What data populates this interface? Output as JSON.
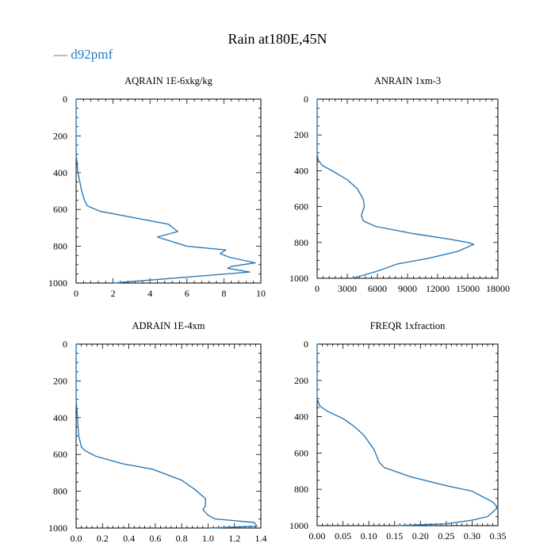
{
  "page": {
    "title": "Rain at180E,45N",
    "legend": [
      {
        "label": "— d92pmf",
        "color": "#2a7ab9"
      }
    ]
  },
  "chart_data": [
    {
      "type": "line",
      "title": "AQRAIN  1E-6xkg/kg",
      "xlim": [
        0,
        10
      ],
      "ylim": [
        1000,
        0
      ],
      "xticks": [
        0,
        2,
        4,
        6,
        8,
        10
      ],
      "xtick_labels": [
        "0",
        "2",
        "4",
        "6",
        "8",
        "10"
      ],
      "yticks": [
        0,
        200,
        400,
        600,
        800,
        1000
      ],
      "ytick_labels": [
        "0",
        "200",
        "400",
        "600",
        "800",
        "1000"
      ],
      "series": [
        {
          "name": "d92pmf",
          "color": "#2a7ab9",
          "points": [
            [
              0,
              0
            ],
            [
              0,
              100
            ],
            [
              0,
              200
            ],
            [
              0,
              300
            ],
            [
              0.05,
              350
            ],
            [
              0.1,
              400
            ],
            [
              0.2,
              450
            ],
            [
              0.3,
              500
            ],
            [
              0.45,
              550
            ],
            [
              0.6,
              580
            ],
            [
              1.3,
              610
            ],
            [
              5,
              680
            ],
            [
              5.5,
              720
            ],
            [
              4.4,
              750
            ],
            [
              6,
              800
            ],
            [
              8.1,
              820
            ],
            [
              7.8,
              840
            ],
            [
              8.3,
              860
            ],
            [
              9.7,
              890
            ],
            [
              8.4,
              910
            ],
            [
              8.2,
              920
            ],
            [
              9.4,
              940
            ],
            [
              2,
              1000
            ]
          ]
        }
      ]
    },
    {
      "type": "line",
      "title": "ANRAIN  1xm-3",
      "xlim": [
        0,
        18000
      ],
      "ylim": [
        1000,
        0
      ],
      "xticks": [
        0,
        3000,
        6000,
        9000,
        12000,
        15000,
        18000
      ],
      "xtick_labels": [
        "0",
        "3000",
        "6000",
        "9000",
        "12000",
        "15000",
        "18000"
      ],
      "yticks": [
        0,
        200,
        400,
        600,
        800,
        1000
      ],
      "ytick_labels": [
        "0",
        "200",
        "400",
        "600",
        "800",
        "1000"
      ],
      "series": [
        {
          "name": "d92pmf",
          "color": "#2a7ab9",
          "points": [
            [
              0,
              0
            ],
            [
              0,
              100
            ],
            [
              0,
              200
            ],
            [
              0,
              300
            ],
            [
              100,
              340
            ],
            [
              500,
              370
            ],
            [
              1500,
              400
            ],
            [
              3000,
              450
            ],
            [
              4000,
              500
            ],
            [
              4600,
              560
            ],
            [
              4700,
              600
            ],
            [
              4400,
              650
            ],
            [
              4600,
              680
            ],
            [
              5800,
              710
            ],
            [
              9500,
              750
            ],
            [
              13000,
              780
            ],
            [
              15000,
              800
            ],
            [
              15600,
              810
            ],
            [
              14000,
              850
            ],
            [
              11000,
              890
            ],
            [
              8000,
              920
            ],
            [
              6000,
              960
            ],
            [
              3500,
              1000
            ]
          ]
        }
      ]
    },
    {
      "type": "line",
      "title": "ADRAIN  1E-4xm",
      "xlim": [
        0,
        1.4
      ],
      "ylim": [
        1000,
        0
      ],
      "xticks": [
        0,
        0.2,
        0.4,
        0.6,
        0.8,
        1.0,
        1.2,
        1.4
      ],
      "xtick_labels": [
        "0.0",
        "0.2",
        "0.4",
        "0.6",
        "0.8",
        "1.0",
        "1.2",
        "1.4"
      ],
      "yticks": [
        0,
        200,
        400,
        600,
        800,
        1000
      ],
      "ytick_labels": [
        "0",
        "200",
        "400",
        "600",
        "800",
        "1000"
      ],
      "series": [
        {
          "name": "d92pmf",
          "color": "#2a7ab9",
          "points": [
            [
              0,
              0
            ],
            [
              0,
              100
            ],
            [
              0,
              200
            ],
            [
              0,
              300
            ],
            [
              0.01,
              400
            ],
            [
              0.02,
              500
            ],
            [
              0.04,
              560
            ],
            [
              0.07,
              580
            ],
            [
              0.15,
              610
            ],
            [
              0.35,
              650
            ],
            [
              0.58,
              680
            ],
            [
              0.8,
              740
            ],
            [
              0.9,
              790
            ],
            [
              0.98,
              840
            ],
            [
              0.98,
              880
            ],
            [
              0.96,
              900
            ],
            [
              1.0,
              930
            ],
            [
              1.05,
              950
            ],
            [
              1.2,
              960
            ],
            [
              1.35,
              970
            ],
            [
              1.37,
              990
            ],
            [
              1.0,
              1000
            ]
          ]
        }
      ]
    },
    {
      "type": "line",
      "title": "FREQR  1xfraction",
      "xlim": [
        0,
        0.35
      ],
      "ylim": [
        1000,
        0
      ],
      "xticks": [
        0,
        0.05,
        0.1,
        0.15,
        0.2,
        0.25,
        0.3,
        0.35
      ],
      "xtick_labels": [
        "0.00",
        "0.05",
        "0.10",
        "0.15",
        "0.20",
        "0.25",
        "0.30",
        "0.35"
      ],
      "yticks": [
        0,
        200,
        400,
        600,
        800,
        1000
      ],
      "ytick_labels": [
        "0",
        "200",
        "400",
        "600",
        "800",
        "1000"
      ],
      "series": [
        {
          "name": "d92pmf",
          "color": "#2a7ab9",
          "points": [
            [
              0,
              0
            ],
            [
              0,
              100
            ],
            [
              0,
              200
            ],
            [
              0,
              300
            ],
            [
              0.005,
              340
            ],
            [
              0.02,
              370
            ],
            [
              0.05,
              410
            ],
            [
              0.07,
              450
            ],
            [
              0.09,
              500
            ],
            [
              0.11,
              580
            ],
            [
              0.12,
              650
            ],
            [
              0.13,
              680
            ],
            [
              0.18,
              730
            ],
            [
              0.25,
              780
            ],
            [
              0.3,
              810
            ],
            [
              0.32,
              840
            ],
            [
              0.34,
              870
            ],
            [
              0.35,
              900
            ],
            [
              0.33,
              950
            ],
            [
              0.3,
              970
            ],
            [
              0.25,
              990
            ],
            [
              0.15,
              1000
            ]
          ]
        }
      ]
    }
  ]
}
